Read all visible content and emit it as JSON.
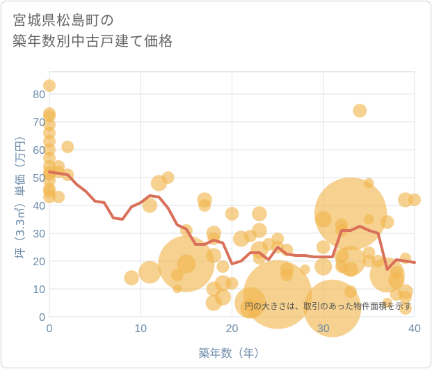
{
  "title_line1": "宮城県松島町の",
  "title_line2": "築年数別中古戸建て価格",
  "chart_data": {
    "type": "scatter",
    "title": "宮城県松島町の築年数別中古戸建て価格",
    "xlabel": "築年数（年）",
    "ylabel": "坪（3.3㎡）単価（万円）",
    "xlim": [
      0,
      40
    ],
    "ylim": [
      0,
      88
    ],
    "xticks": [
      0,
      10,
      20,
      30,
      40
    ],
    "yticks": [
      0,
      10,
      20,
      30,
      40,
      50,
      60,
      70,
      80
    ],
    "grid": true,
    "note": "円の大きさは、取引のあった物件面積を示す",
    "colors": {
      "bubble": "#f0b44c",
      "line": "#d9705a",
      "axis_text": "#6b8aa8",
      "grid": "#dde3ea"
    },
    "bubbles": [
      {
        "x": 0,
        "y": 83,
        "r": 1
      },
      {
        "x": 0,
        "y": 73,
        "r": 1
      },
      {
        "x": 0,
        "y": 72,
        "r": 1
      },
      {
        "x": 0,
        "y": 69,
        "r": 1
      },
      {
        "x": 0,
        "y": 66,
        "r": 1
      },
      {
        "x": 0,
        "y": 63,
        "r": 1
      },
      {
        "x": 0,
        "y": 60,
        "r": 1
      },
      {
        "x": 0,
        "y": 57,
        "r": 1
      },
      {
        "x": 0,
        "y": 54,
        "r": 1
      },
      {
        "x": 0,
        "y": 52,
        "r": 1
      },
      {
        "x": 0,
        "y": 51,
        "r": 1
      },
      {
        "x": 0,
        "y": 49,
        "r": 1
      },
      {
        "x": 0,
        "y": 46,
        "r": 1
      },
      {
        "x": 0,
        "y": 45,
        "r": 1
      },
      {
        "x": 0,
        "y": 43,
        "r": 1
      },
      {
        "x": 1,
        "y": 54,
        "r": 1
      },
      {
        "x": 1,
        "y": 52,
        "r": 1
      },
      {
        "x": 1,
        "y": 43,
        "r": 1
      },
      {
        "x": 2,
        "y": 61,
        "r": 1
      },
      {
        "x": 2,
        "y": 51,
        "r": 1
      },
      {
        "x": 9,
        "y": 14,
        "r": 1.2
      },
      {
        "x": 11,
        "y": 40,
        "r": 1.2
      },
      {
        "x": 11,
        "y": 16,
        "r": 1.8
      },
      {
        "x": 12,
        "y": 48,
        "r": 1.3
      },
      {
        "x": 13,
        "y": 50,
        "r": 1
      },
      {
        "x": 14,
        "y": 15,
        "r": 1
      },
      {
        "x": 14,
        "y": 10,
        "r": 0.7
      },
      {
        "x": 15,
        "y": 31,
        "r": 1
      },
      {
        "x": 15,
        "y": 19,
        "r": 4.5
      },
      {
        "x": 15,
        "y": 19,
        "r": 1.5
      },
      {
        "x": 17,
        "y": 42,
        "r": 1.2
      },
      {
        "x": 17,
        "y": 40,
        "r": 1
      },
      {
        "x": 18,
        "y": 30,
        "r": 1.2
      },
      {
        "x": 18,
        "y": 28,
        "r": 1
      },
      {
        "x": 18,
        "y": 22,
        "r": 1.2
      },
      {
        "x": 18,
        "y": 10,
        "r": 1.2
      },
      {
        "x": 18,
        "y": 5,
        "r": 1.3
      },
      {
        "x": 19,
        "y": 18,
        "r": 1
      },
      {
        "x": 19,
        "y": 12,
        "r": 1.3
      },
      {
        "x": 19,
        "y": 7,
        "r": 1.3
      },
      {
        "x": 20,
        "y": 37,
        "r": 1.1
      },
      {
        "x": 20,
        "y": 12,
        "r": 1
      },
      {
        "x": 21,
        "y": 28,
        "r": 1.3
      },
      {
        "x": 22,
        "y": 29,
        "r": 1
      },
      {
        "x": 22,
        "y": 5,
        "r": 2.5
      },
      {
        "x": 22,
        "y": 3,
        "r": 1.6
      },
      {
        "x": 23,
        "y": 37,
        "r": 1.2
      },
      {
        "x": 23,
        "y": 31,
        "r": 1.2
      },
      {
        "x": 23,
        "y": 24,
        "r": 1.4
      },
      {
        "x": 23,
        "y": 21,
        "r": 1
      },
      {
        "x": 24,
        "y": 26,
        "r": 1
      },
      {
        "x": 25,
        "y": 28,
        "r": 1
      },
      {
        "x": 25,
        "y": 25,
        "r": 1
      },
      {
        "x": 25,
        "y": 8,
        "r": 5.5
      },
      {
        "x": 26,
        "y": 24,
        "r": 1
      },
      {
        "x": 26,
        "y": 17,
        "r": 1.1
      },
      {
        "x": 26,
        "y": 15,
        "r": 1
      },
      {
        "x": 28,
        "y": 17,
        "r": 0.8
      },
      {
        "x": 30,
        "y": 35,
        "r": 1.3
      },
      {
        "x": 30,
        "y": 25,
        "r": 1.1
      },
      {
        "x": 30,
        "y": 18,
        "r": 1.4
      },
      {
        "x": 31,
        "y": 3,
        "r": 4.6
      },
      {
        "x": 32,
        "y": 33,
        "r": 1
      },
      {
        "x": 32,
        "y": 31,
        "r": 1
      },
      {
        "x": 32,
        "y": 22,
        "r": 1.2
      },
      {
        "x": 32,
        "y": 18,
        "r": 1
      },
      {
        "x": 33,
        "y": 37,
        "r": 5.8
      },
      {
        "x": 33,
        "y": 20,
        "r": 2.4
      },
      {
        "x": 33,
        "y": 17,
        "r": 1.2
      },
      {
        "x": 33,
        "y": 9,
        "r": 1
      },
      {
        "x": 34,
        "y": 74,
        "r": 1.1
      },
      {
        "x": 35,
        "y": 48,
        "r": 0.8
      },
      {
        "x": 35,
        "y": 35,
        "r": 0.8
      },
      {
        "x": 35,
        "y": 23,
        "r": 1
      },
      {
        "x": 35,
        "y": 20,
        "r": 1
      },
      {
        "x": 36,
        "y": 20,
        "r": 1
      },
      {
        "x": 37,
        "y": 34,
        "r": 1.1
      },
      {
        "x": 37,
        "y": 15,
        "r": 2.8
      },
      {
        "x": 37,
        "y": 5,
        "r": 0.8
      },
      {
        "x": 38,
        "y": 16,
        "r": 1
      },
      {
        "x": 38,
        "y": 13,
        "r": 1.3
      },
      {
        "x": 38,
        "y": 8,
        "r": 1
      },
      {
        "x": 39,
        "y": 42,
        "r": 1.2
      },
      {
        "x": 39,
        "y": 21,
        "r": 0.9
      },
      {
        "x": 39,
        "y": 9,
        "r": 1.2
      },
      {
        "x": 39,
        "y": 7,
        "r": 1
      },
      {
        "x": 39,
        "y": 3,
        "r": 1
      },
      {
        "x": 40,
        "y": 42,
        "r": 1
      }
    ],
    "trend": {
      "x": [
        0,
        1,
        2,
        3,
        4,
        5,
        6,
        7,
        8,
        9,
        10,
        11,
        12,
        13,
        14,
        15,
        16,
        17,
        18,
        19,
        20,
        21,
        22,
        23,
        24,
        25,
        26,
        27,
        28,
        29,
        30,
        31,
        32,
        33,
        34,
        35,
        36,
        37,
        38,
        39,
        40
      ],
      "y": [
        52,
        51.5,
        51,
        47.5,
        45,
        41.5,
        41,
        35.5,
        35,
        39.5,
        41,
        43.5,
        43,
        39,
        33,
        31.5,
        26,
        26,
        27.5,
        26.5,
        19,
        20,
        23,
        23,
        20.5,
        25,
        22.5,
        22,
        22,
        21.5,
        21.5,
        21.5,
        31,
        31,
        32.5,
        31,
        30,
        17,
        20.5,
        20,
        19.5
      ]
    }
  }
}
